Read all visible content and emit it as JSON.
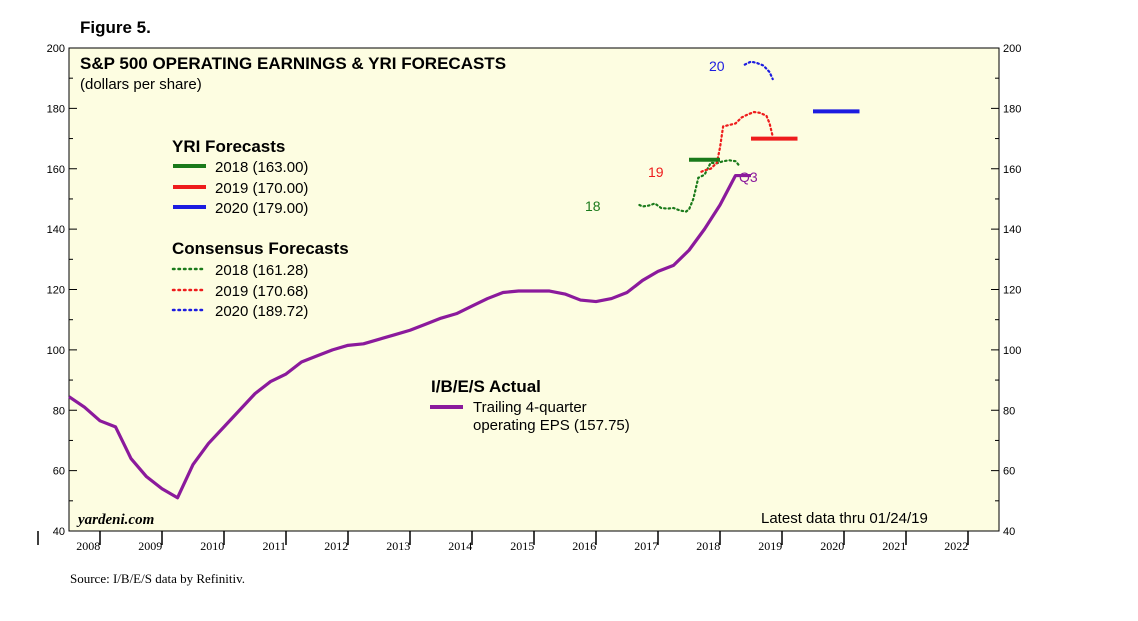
{
  "figure_label": "Figure 5.",
  "source": "Source: I/B/E/S data by Refinitiv.",
  "colors": {
    "plot_bg": "#fdfde1",
    "purple": "#8b1a9c",
    "green": "#1a7a1a",
    "red": "#ee1c1c",
    "blue": "#1c1ce0"
  },
  "chart_data": {
    "type": "line",
    "title": "S&P 500 OPERATING EARNINGS & YRI FORECASTS",
    "subtitle": "(dollars per share)",
    "watermark": "yardeni.com",
    "note": "Latest data thru 01/24/19",
    "ylim": [
      40,
      200
    ],
    "yticks": [
      40,
      60,
      80,
      100,
      120,
      140,
      160,
      180,
      200
    ],
    "xlim": [
      2007.75,
      2022.75
    ],
    "xtick_labels": [
      "2008",
      "2009",
      "2010",
      "2011",
      "2012",
      "2013",
      "2014",
      "2015",
      "2016",
      "2017",
      "2018",
      "2019",
      "2020",
      "2021",
      "2022"
    ],
    "legend": {
      "yri_heading": "YRI Forecasts",
      "yri": [
        {
          "key": "y2018",
          "label": "2018 (163.00)",
          "color": "green"
        },
        {
          "key": "y2019",
          "label": "2019 (170.00)",
          "color": "red"
        },
        {
          "key": "y2020",
          "label": "2020 (179.00)",
          "color": "blue"
        }
      ],
      "consensus_heading": "Consensus Forecasts",
      "consensus": [
        {
          "key": "c2018",
          "label": "2018 (161.28)",
          "color": "green"
        },
        {
          "key": "c2019",
          "label": "2019 (170.68)",
          "color": "red"
        },
        {
          "key": "c2020",
          "label": "2020 (189.72)",
          "color": "blue"
        }
      ],
      "actual_heading": "I/B/E/S Actual",
      "actual_line1": "Trailing 4-quarter",
      "actual_line2": "operating EPS (157.75)"
    },
    "annotations": {
      "c18": "18",
      "c19": "19",
      "c20": "20",
      "q3": "Q3"
    },
    "actual_eps": {
      "name": "Trailing 4-quarter operating EPS (157.75)",
      "x": [
        2007.75,
        2008.0,
        2008.25,
        2008.5,
        2008.75,
        2009.0,
        2009.25,
        2009.5,
        2009.75,
        2010.0,
        2010.25,
        2010.5,
        2010.75,
        2011.0,
        2011.25,
        2011.5,
        2011.75,
        2012.0,
        2012.25,
        2012.5,
        2012.75,
        2013.0,
        2013.25,
        2013.5,
        2013.75,
        2014.0,
        2014.25,
        2014.5,
        2014.75,
        2015.0,
        2015.25,
        2015.5,
        2015.75,
        2016.0,
        2016.25,
        2016.5,
        2016.75,
        2017.0,
        2017.25,
        2017.5,
        2017.75,
        2018.0,
        2018.25,
        2018.5,
        2018.75
      ],
      "y": [
        84.5,
        81,
        76.5,
        74.5,
        64,
        58,
        54,
        51,
        62,
        69,
        74.5,
        80,
        85.5,
        89.5,
        92,
        96,
        98,
        100,
        101.5,
        102,
        103.5,
        105,
        106.5,
        108.5,
        110.5,
        112,
        114.5,
        117,
        119,
        119.5,
        119.5,
        119.5,
        118.5,
        116.5,
        116,
        117,
        119,
        123,
        126,
        128,
        133,
        140,
        148,
        157.75,
        157.75
      ]
    },
    "yri_forecasts": [
      {
        "key": "y2018",
        "x": [
          2017.75,
          2018.25
        ],
        "y": 163.0,
        "color": "green"
      },
      {
        "key": "y2019",
        "x": [
          2018.75,
          2019.5
        ],
        "y": 170.0,
        "color": "red"
      },
      {
        "key": "y2020",
        "x": [
          2019.75,
          2020.5
        ],
        "y": 179.0,
        "color": "blue"
      }
    ],
    "consensus_series": [
      {
        "key": "c2018",
        "color": "green",
        "x": [
          2016.95,
          2017.0,
          2017.1,
          2017.2,
          2017.3,
          2017.4,
          2017.5,
          2017.6,
          2017.7,
          2017.75,
          2017.82,
          2017.9,
          2018.0,
          2018.1,
          2018.2,
          2018.3,
          2018.4,
          2018.5,
          2018.55
        ],
        "y": [
          148,
          147.5,
          147.8,
          148.5,
          147,
          146.8,
          147,
          146.2,
          145.8,
          146.5,
          150,
          157,
          158,
          162,
          161.8,
          162.5,
          162.8,
          162.5,
          161.3
        ]
      },
      {
        "key": "c2019",
        "color": "red",
        "x": [
          2017.95,
          2018.0,
          2018.1,
          2018.2,
          2018.25,
          2018.3,
          2018.4,
          2018.5,
          2018.6,
          2018.7,
          2018.8,
          2018.9,
          2019.0,
          2019.05,
          2019.1
        ],
        "y": [
          159,
          159.5,
          160,
          162,
          167,
          174,
          174.5,
          175,
          177,
          178,
          178.8,
          178.5,
          177.5,
          175,
          170.7
        ]
      },
      {
        "key": "c2020",
        "color": "blue",
        "x": [
          2018.65,
          2018.75,
          2018.85,
          2018.95,
          2019.05,
          2019.1
        ],
        "y": [
          194.5,
          195.5,
          195,
          194.2,
          192,
          189.7
        ]
      }
    ]
  }
}
